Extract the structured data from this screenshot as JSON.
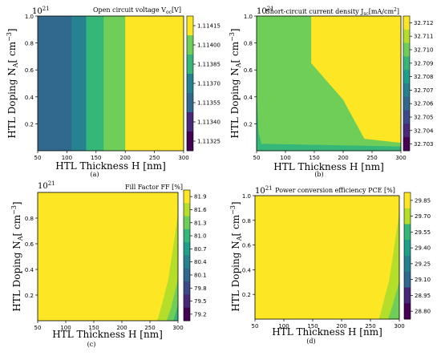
{
  "colors": {
    "c0": "#fde725",
    "c1": "#b5de2b",
    "c2": "#6ece58",
    "c3": "#35b779",
    "c4": "#1f9e89",
    "c5": "#26828e",
    "c6": "#31688e",
    "c7": "#3e4989",
    "c8": "#482878",
    "c9": "#440154"
  },
  "chart_data": [
    {
      "type": "heatmap",
      "panel_label": "(a)",
      "title": "Open circuit voltage V",
      "title_sub": "oc",
      "title_suffix": "[V]",
      "xlabel": "HTL Thickness H [nm]",
      "ylabel_main": "HTL Doping N",
      "ylabel_sub": "A",
      "ylabel_bracket": "[ cm",
      "ylabel_exp": "−3",
      "ylabel_close": "]",
      "y_offset": "10",
      "y_offset_exp": "21",
      "xlim": [
        50,
        300
      ],
      "ylim": [
        0.0,
        1.0
      ],
      "xticks": [
        "50",
        "100",
        "150",
        "200",
        "250",
        "300"
      ],
      "yticks": [
        "0.2",
        "0.4",
        "0.6",
        "0.8",
        "1.0"
      ],
      "colorbar_ticks": [
        "1.11415",
        "1.11400",
        "1.11385",
        "1.11370",
        "1.11355",
        "1.11340",
        "1.11325"
      ],
      "bands_x": [
        {
          "x0": 50,
          "x1": 108,
          "color_index": 6
        },
        {
          "x0": 108,
          "x1": 133,
          "color_index": 5
        },
        {
          "x0": 133,
          "x1": 163,
          "color_index": 3
        },
        {
          "x0": 163,
          "x1": 200,
          "color_index": 2
        },
        {
          "x0": 200,
          "x1": 300,
          "color_index": 0
        }
      ]
    },
    {
      "type": "heatmap",
      "panel_label": "(b)",
      "title": "Short-circuit current density J",
      "title_sub": "sc",
      "title_suffix": "[mA/cm",
      "title_suffix_exp": "2",
      "title_close": "]",
      "xlabel": "HTL Thickness H [nm]",
      "ylabel_main": "HTL Doping N",
      "ylabel_sub": "A",
      "ylabel_bracket": "[ cm",
      "ylabel_exp": "−3",
      "ylabel_close": "]",
      "y_offset": "10",
      "y_offset_exp": "21",
      "xlim": [
        50,
        300
      ],
      "ylim": [
        0.0,
        1.0
      ],
      "xticks": [
        "50",
        "100",
        "150",
        "200",
        "250",
        "300"
      ],
      "yticks": [
        "0.2",
        "0.4",
        "0.6",
        "0.8",
        "1.0"
      ],
      "colorbar_ticks": [
        "32.712",
        "32.711",
        "32.710",
        "32.709",
        "32.708",
        "32.707",
        "32.706",
        "32.705",
        "32.704",
        "32.703"
      ],
      "region_high": {
        "color_index": 0,
        "boundary": [
          [
            145,
            1.0
          ],
          [
            145,
            0.65
          ],
          [
            200,
            0.38
          ],
          [
            237,
            0.09
          ],
          [
            300,
            0.06
          ]
        ]
      },
      "region_low": {
        "color_index": 2
      },
      "edge_strip": {
        "color_index": 3,
        "boundary": [
          [
            50,
            0.42
          ],
          [
            53,
            0.14
          ],
          [
            58,
            0.05
          ],
          [
            300,
            0.03
          ],
          [
            300,
            0.0
          ]
        ]
      }
    },
    {
      "type": "heatmap",
      "panel_label": "(c)",
      "title": "Fill Factor FF [%]",
      "xlabel": "HTL Thickness H [nm]",
      "ylabel_main": "HTL Doping N",
      "ylabel_sub": "A",
      "ylabel_bracket": "[ cm",
      "ylabel_exp": "−3",
      "ylabel_close": "]",
      "y_offset": "10",
      "y_offset_exp": "21",
      "xlim": [
        50,
        300
      ],
      "ylim": [
        0.0,
        1.0
      ],
      "xticks": [
        "50",
        "100",
        "150",
        "200",
        "250",
        "300"
      ],
      "yticks": [
        "0.2",
        "0.4",
        "0.6",
        "0.8"
      ],
      "colorbar_ticks": [
        "81.9",
        "81.6",
        "81.3",
        "81.0",
        "80.7",
        "80.4",
        "80.1",
        "79.8",
        "79.5",
        "79.2"
      ],
      "region_main": {
        "color_index": 0
      },
      "corner_regions": [
        {
          "color_index": 1,
          "boundary": [
            [
              300,
              0.82
            ],
            [
              283,
              0.32
            ],
            [
              267,
              0.05
            ],
            [
              263,
              0.0
            ],
            [
              300,
              0.0
            ]
          ]
        },
        {
          "color_index": 2,
          "boundary": [
            [
              300,
              0.32
            ],
            [
              288,
              0.1
            ],
            [
              280,
              0.0
            ],
            [
              300,
              0.0
            ]
          ]
        },
        {
          "color_index": 3,
          "boundary": [
            [
              300,
              0.12
            ],
            [
              292,
              0.0
            ],
            [
              300,
              0.0
            ]
          ]
        }
      ]
    },
    {
      "type": "heatmap",
      "panel_label": "(d)",
      "title": "Power conversion efficiency PCE [%]",
      "xlabel": "HTL Thickness H [nm]",
      "ylabel_main": "HTL Doping N",
      "ylabel_sub": "A",
      "ylabel_bracket": "[ cm",
      "ylabel_exp": "−3",
      "ylabel_close": "]",
      "y_offset": "10",
      "y_offset_exp": "21",
      "xlim": [
        50,
        300
      ],
      "ylim": [
        0.0,
        1.0
      ],
      "xticks": [
        "50",
        "100",
        "150",
        "200",
        "250",
        "300"
      ],
      "yticks": [
        "0.2",
        "0.4",
        "0.6",
        "0.8",
        "1.0"
      ],
      "colorbar_ticks": [
        "29.85",
        "29.70",
        "29.55",
        "29.40",
        "29.25",
        "29.10",
        "28.95",
        "28.80"
      ],
      "region_main": {
        "color_index": 0
      },
      "corner_regions": [
        {
          "color_index": 1,
          "boundary": [
            [
              300,
              0.85
            ],
            [
              283,
              0.32
            ],
            [
              268,
              0.05
            ],
            [
              265,
              0.0
            ],
            [
              300,
              0.0
            ]
          ]
        },
        {
          "color_index": 2,
          "boundary": [
            [
              300,
              0.3
            ],
            [
              288,
              0.1
            ],
            [
              281,
              0.0
            ],
            [
              300,
              0.0
            ]
          ]
        }
      ]
    }
  ]
}
